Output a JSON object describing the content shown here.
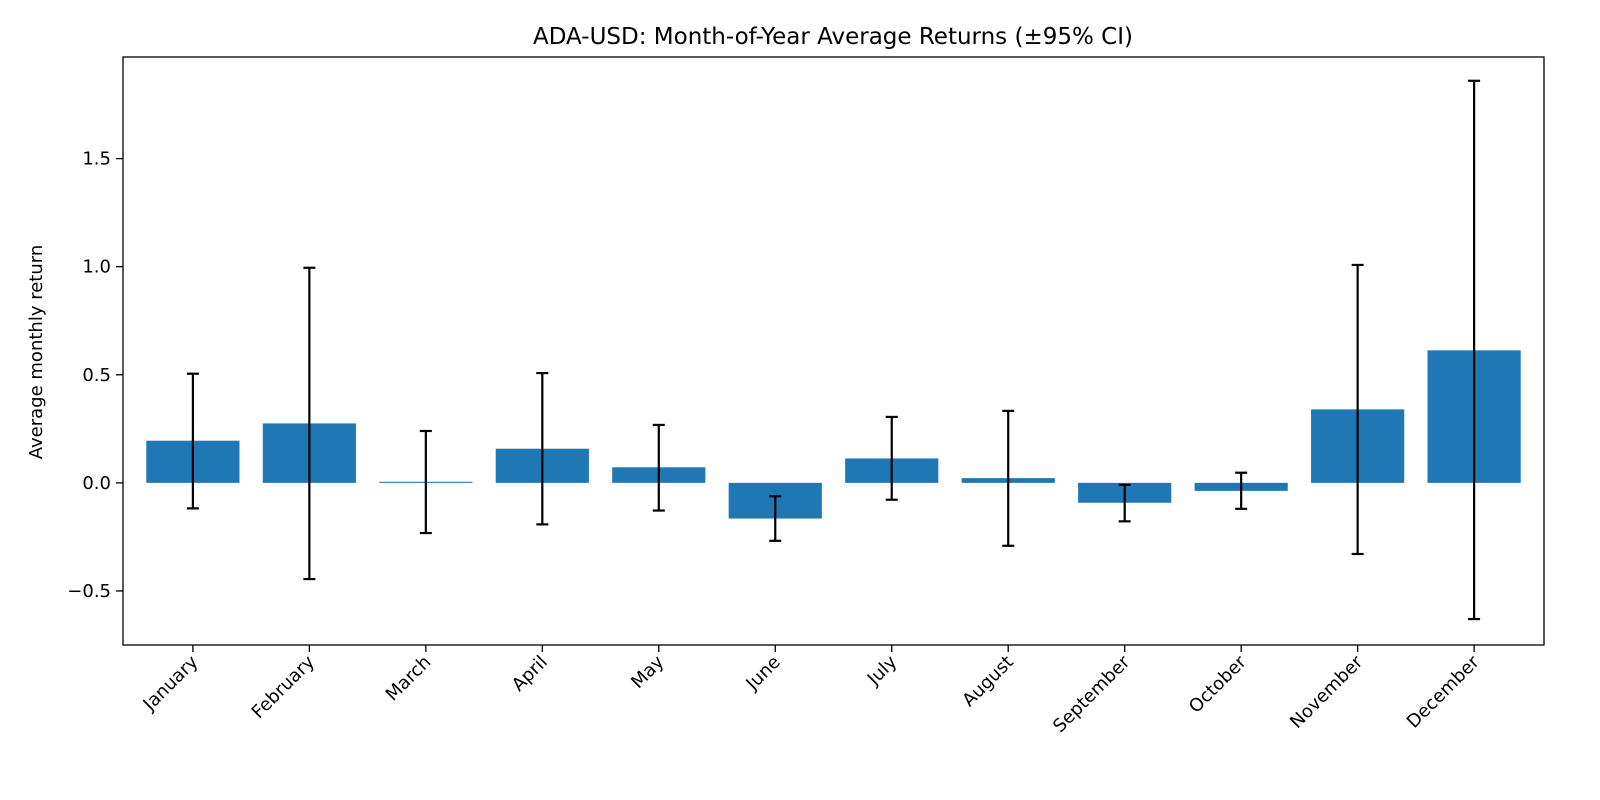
{
  "chart_data": {
    "type": "bar",
    "title": "ADA-USD: Month-of-Year Average Returns (±95% CI)",
    "xlabel": "",
    "ylabel": "Average monthly return",
    "categories": [
      "January",
      "February",
      "March",
      "April",
      "May",
      "June",
      "July",
      "August",
      "September",
      "October",
      "November",
      "December"
    ],
    "values": [
      0.195,
      0.275,
      0.005,
      0.158,
      0.072,
      -0.165,
      0.113,
      0.022,
      -0.092,
      -0.037,
      0.34,
      0.613
    ],
    "ci_lower": [
      -0.118,
      -0.445,
      -0.232,
      -0.192,
      -0.128,
      -0.268,
      -0.078,
      -0.291,
      -0.178,
      -0.12,
      -0.329,
      -0.63
    ],
    "ci_upper": [
      0.505,
      0.995,
      0.24,
      0.508,
      0.268,
      -0.062,
      0.305,
      0.333,
      -0.009,
      0.047,
      1.008,
      1.86
    ],
    "ylim": [
      -0.75,
      1.97
    ],
    "yticks": [
      -0.5,
      0.0,
      0.5,
      1.0,
      1.5
    ],
    "ytick_labels": [
      "−0.5",
      "0.0",
      "0.5",
      "1.0",
      "1.5"
    ],
    "bar_color": "#1f77b4",
    "errorbar_color": "#000000",
    "grid": false,
    "legend": "none"
  }
}
